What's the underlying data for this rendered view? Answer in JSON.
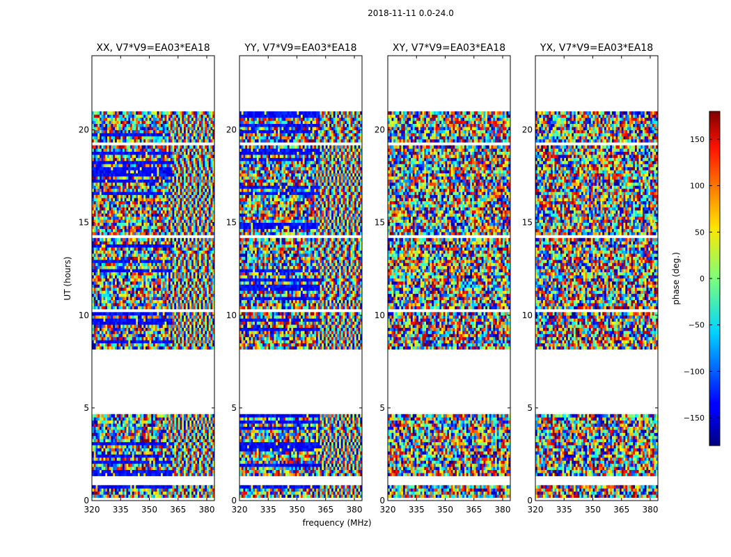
{
  "figure": {
    "suptitle": "2018-11-11 0.0-24.0",
    "xlabel": "frequency (MHz)",
    "ylabel": "UT (hours)",
    "colorbar_label": "phase (deg.)"
  },
  "chart_data": {
    "type": "heatmap",
    "colormap": "jet",
    "x_ticks": [
      320,
      335,
      350,
      365,
      380
    ],
    "xlim": [
      320,
      384
    ],
    "y_ticks": [
      0,
      5,
      10,
      15,
      20
    ],
    "ylim": [
      0,
      24
    ],
    "colorbar_ticks": [
      150,
      100,
      50,
      0,
      -50,
      -100,
      -150
    ],
    "colorbar_range": [
      -180,
      180
    ],
    "grid": false,
    "panels": [
      {
        "title": "XX, V7*V9=EA03*EA18",
        "polarization": "XX"
      },
      {
        "title": "YY, V7*V9=EA03*EA18",
        "polarization": "YY"
      },
      {
        "title": "XY, V7*V9=EA03*EA18",
        "polarization": "XY"
      },
      {
        "title": "YX, V7*V9=EA03*EA18",
        "polarization": "YX"
      }
    ],
    "data_gaps_hours": [
      [
        0.0,
        0.1
      ],
      [
        0.9,
        1.4
      ],
      [
        4.6,
        8.1
      ],
      [
        10.1,
        10.4
      ],
      [
        14.2,
        14.4
      ],
      [
        19.1,
        19.4
      ],
      [
        21.05,
        24.0
      ]
    ]
  },
  "colors": {
    "axes": "#000000",
    "background": "#ffffff"
  }
}
